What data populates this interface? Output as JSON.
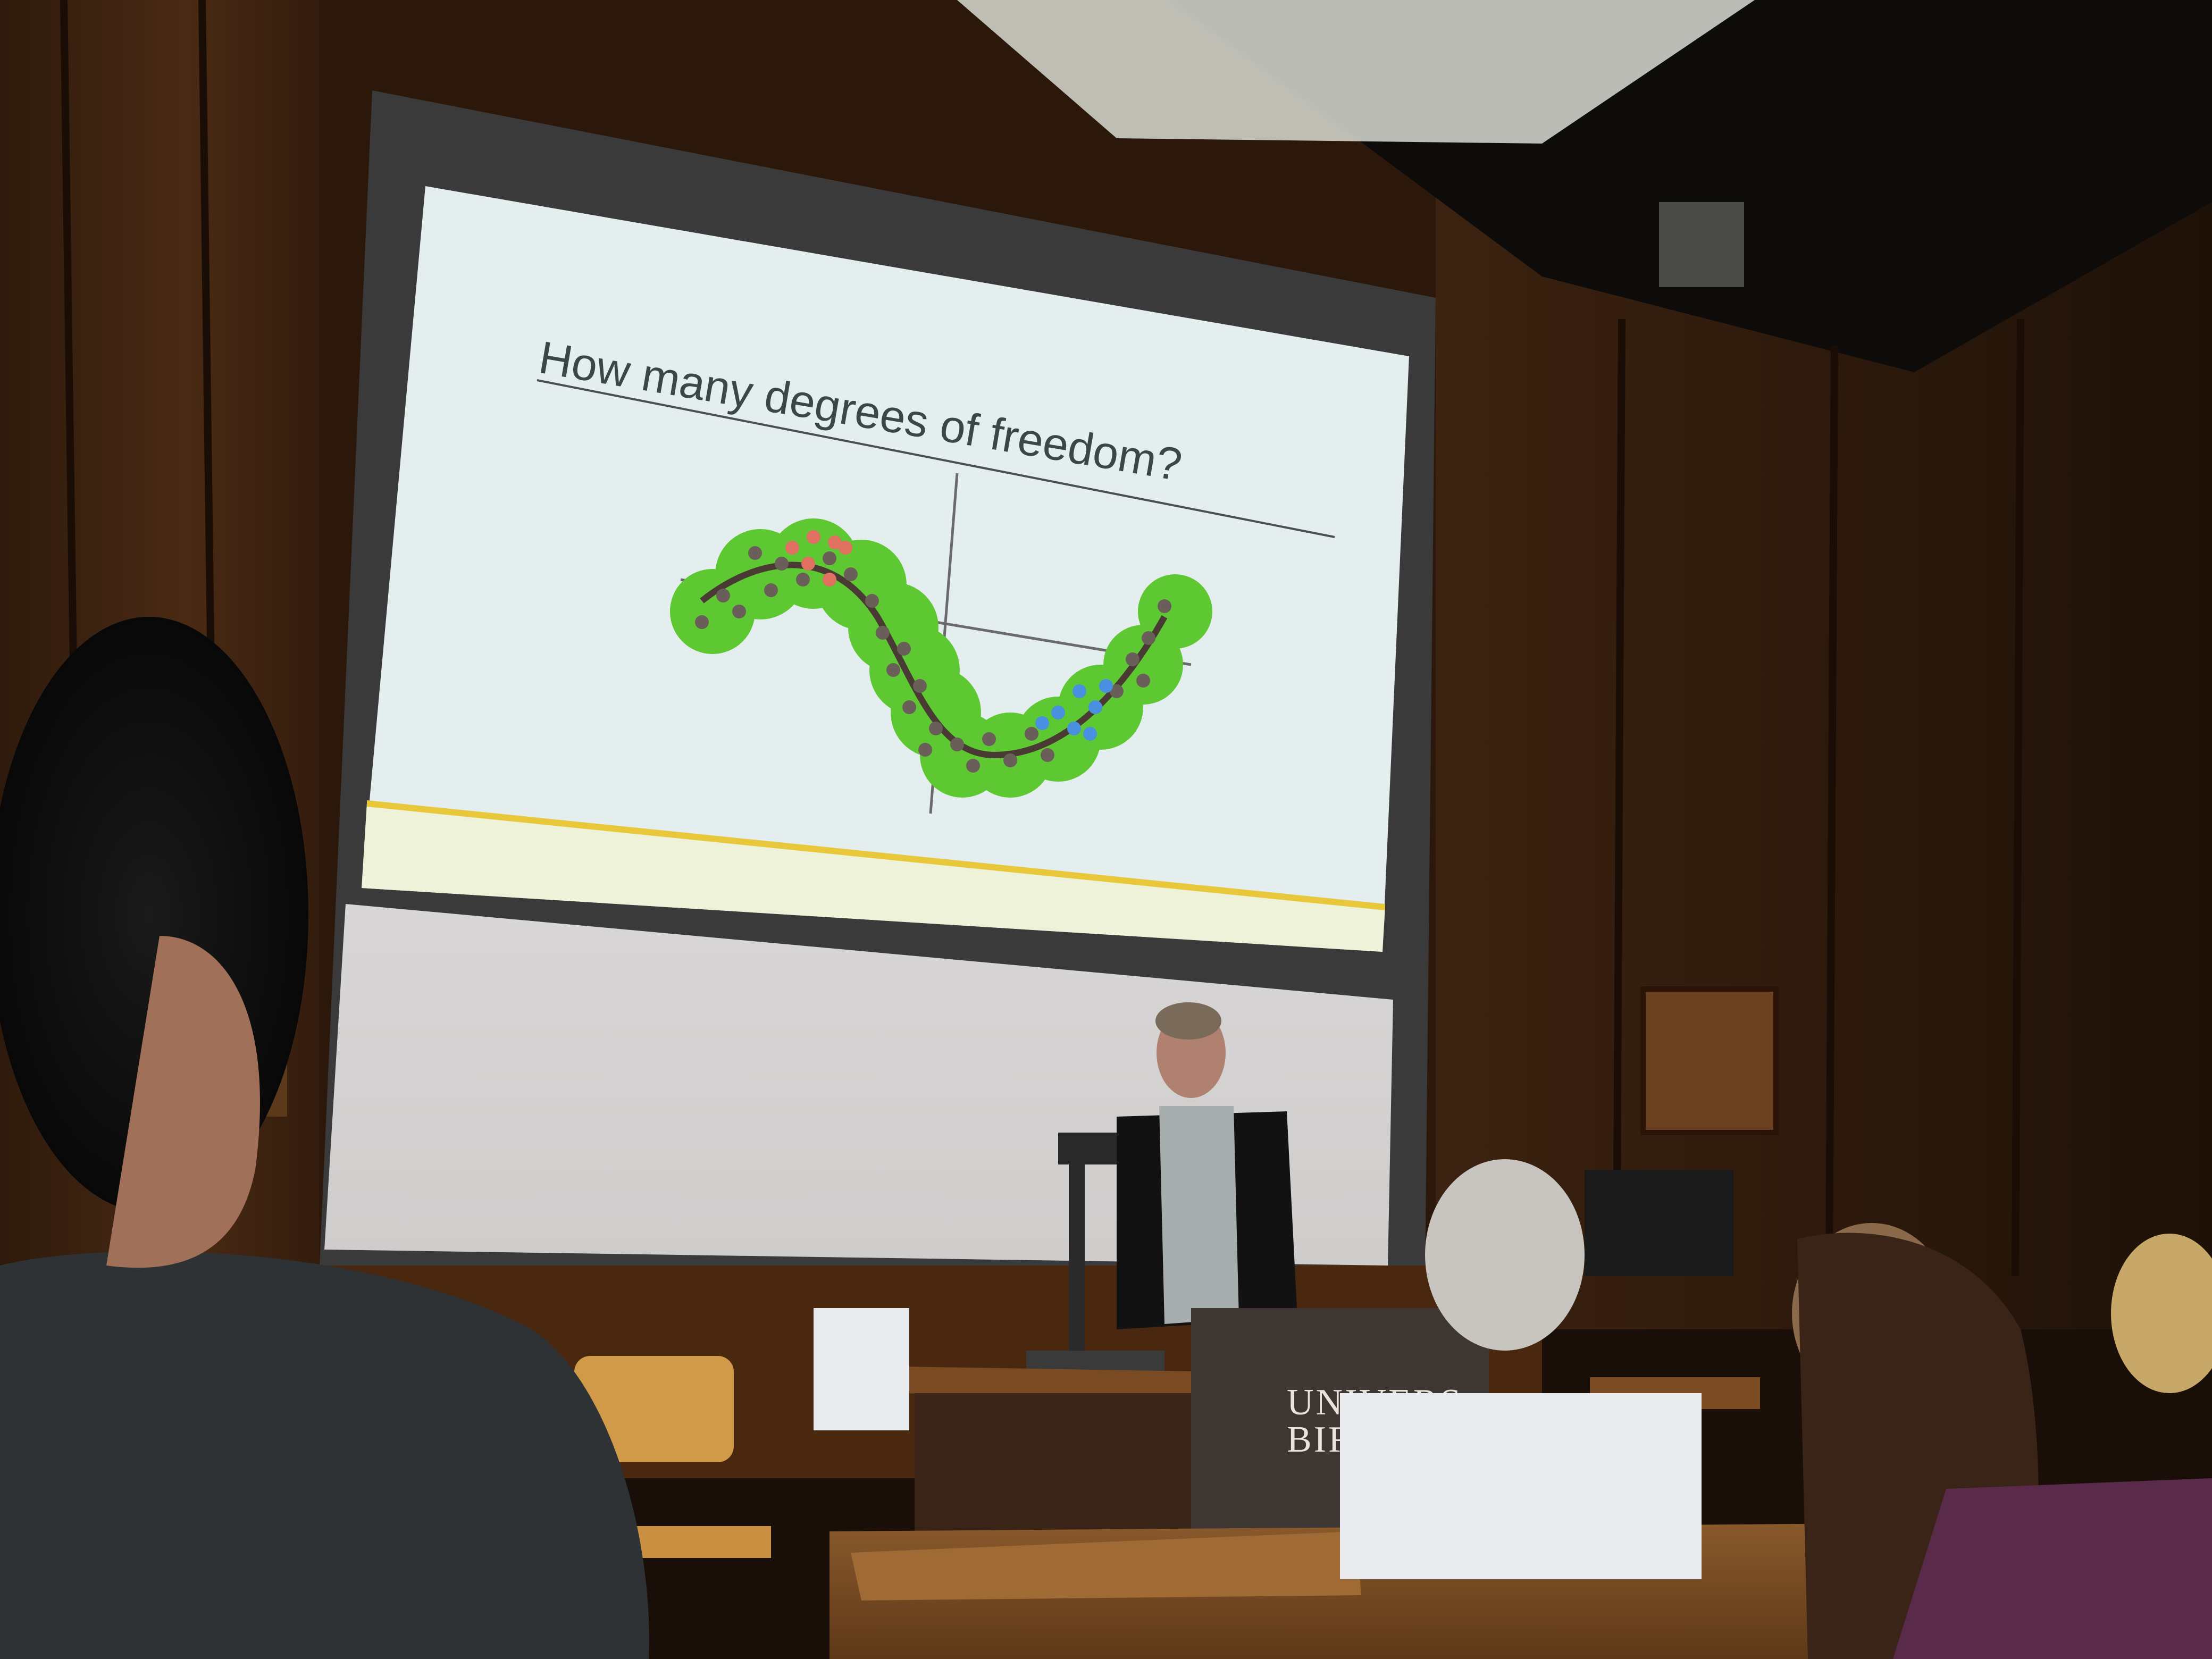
{
  "slide": {
    "title": "How many degrees of freedom?",
    "colors": {
      "background": "#e4eeee",
      "blob": "#5ec832",
      "gray_dots": "#6a5e58",
      "red_dots": "#e07060",
      "blue_dots": "#4a90e0",
      "footer_bar": "#e8c83a"
    }
  },
  "podium": {
    "line1": "UNIVERS",
    "line2": "BIRM"
  }
}
